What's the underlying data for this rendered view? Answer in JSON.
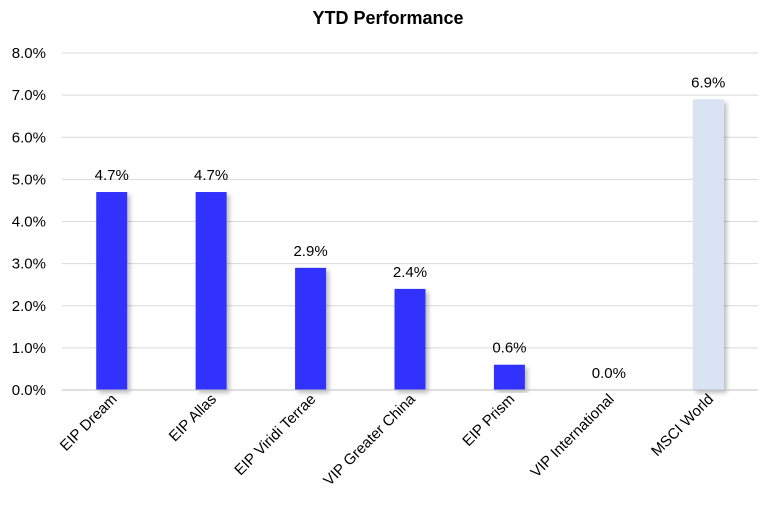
{
  "chart_data": {
    "type": "bar",
    "title": "YTD Performance",
    "categories": [
      "EIP Dream",
      "EIP Allas",
      "EIP Viridi Terrae",
      "VIP Greater China",
      "EIP Prism",
      "VIP International",
      "MSCI World"
    ],
    "values": [
      4.7,
      4.7,
      2.9,
      2.4,
      0.6,
      0.0,
      6.9
    ],
    "data_labels": [
      "4.7%",
      "4.7%",
      "2.9%",
      "2.4%",
      "0.6%",
      "0.0%",
      "6.9%"
    ],
    "y_ticks": [
      "0.0%",
      "1.0%",
      "2.0%",
      "3.0%",
      "4.0%",
      "5.0%",
      "6.0%",
      "7.0%",
      "8.0%"
    ],
    "ylim": [
      0,
      8
    ],
    "grid": true,
    "legend": "none",
    "colors": {
      "fund": "#3333ff",
      "benchmark": "#dae3f3"
    },
    "bar_colors": [
      "fund",
      "fund",
      "fund",
      "fund",
      "fund",
      "fund",
      "benchmark"
    ]
  }
}
